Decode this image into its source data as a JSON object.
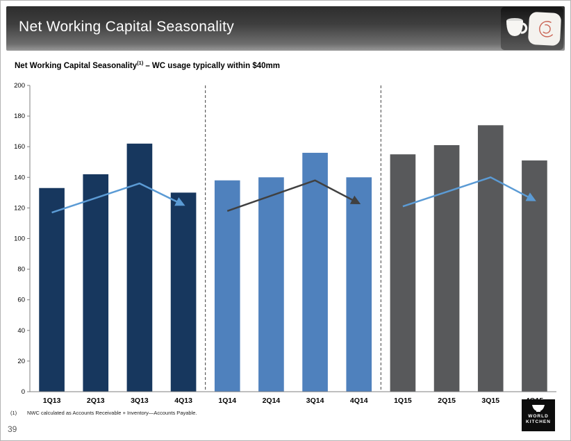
{
  "slide": {
    "title": "Net Working Capital Seasonality",
    "page_number": "39"
  },
  "subtitle": {
    "main": "Net Working Capital Seasonality",
    "sup": "(1)",
    "rest": "– WC usage typically within $40mm"
  },
  "footnote": {
    "marker": "(1)",
    "text": "NWC calculated as Accounts Receivable + Inventory—Accounts Payable."
  },
  "logo": {
    "line1": "WORLD",
    "line2": "KITCHEN"
  },
  "chart_data": {
    "type": "bar",
    "title": "Net Working Capital Seasonality – WC usage typically within $40mm",
    "categories": [
      "1Q13",
      "2Q13",
      "3Q13",
      "4Q13",
      "1Q14",
      "2Q14",
      "3Q14",
      "4Q14",
      "1Q15",
      "2Q15",
      "3Q15",
      "4Q15"
    ],
    "values": [
      133,
      142,
      162,
      130,
      138,
      140,
      156,
      140,
      155,
      161,
      174,
      151
    ],
    "xlabel": "",
    "ylabel": "",
    "ylim": [
      0,
      200
    ],
    "ytick_step": 20,
    "grid": false,
    "legend": "none",
    "group_size": 4,
    "group_colors": [
      "#17375E",
      "#4F81BD",
      "#58595B"
    ],
    "separators_after": [
      3,
      7
    ],
    "separator_color": "#3f3f3f",
    "axis_color": "#7f7f7f",
    "trend_arrows": [
      {
        "name": "2013-trend",
        "color": "#5B9BD5",
        "points": [
          [
            0,
            117
          ],
          [
            2,
            136
          ],
          [
            3,
            122
          ]
        ]
      },
      {
        "name": "2014-trend",
        "color": "#404040",
        "points": [
          [
            4,
            118
          ],
          [
            6,
            138
          ],
          [
            7,
            123
          ]
        ]
      },
      {
        "name": "2015-trend",
        "color": "#5B9BD5",
        "points": [
          [
            8,
            121
          ],
          [
            10,
            140
          ],
          [
            11,
            125
          ]
        ]
      }
    ]
  }
}
